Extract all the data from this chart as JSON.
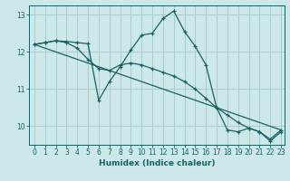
{
  "xlabel": "Humidex (Indice chaleur)",
  "bg_color": "#cce8e8",
  "grid_color": "#aacccc",
  "line_color": "#1a6060",
  "xlim": [
    -0.5,
    23.3
  ],
  "ylim": [
    9.5,
    13.25
  ],
  "yticks": [
    10,
    11,
    12,
    13
  ],
  "xticks": [
    0,
    1,
    2,
    3,
    4,
    5,
    6,
    7,
    8,
    9,
    10,
    11,
    12,
    13,
    14,
    15,
    16,
    17,
    18,
    19,
    20,
    21,
    22,
    23
  ],
  "line1_x": [
    0,
    1,
    2,
    3,
    4,
    5,
    6,
    7,
    8,
    9,
    10,
    11,
    12,
    13,
    14,
    15,
    16,
    17,
    18,
    19,
    20,
    21,
    22,
    23
  ],
  "line1_y": [
    12.2,
    12.25,
    12.3,
    12.28,
    12.25,
    12.22,
    10.7,
    11.2,
    11.6,
    12.05,
    12.45,
    12.5,
    12.9,
    13.1,
    12.55,
    12.15,
    11.65,
    10.5,
    9.9,
    9.85,
    9.95,
    9.85,
    9.6,
    9.85
  ],
  "line2_x": [
    0,
    1,
    2,
    3,
    4,
    5,
    6,
    7,
    8,
    9,
    10,
    11,
    12,
    13,
    14,
    15,
    16,
    17,
    18,
    19,
    20,
    21,
    22,
    23
  ],
  "line2_y": [
    12.2,
    12.25,
    12.3,
    12.25,
    12.1,
    11.8,
    11.55,
    11.5,
    11.65,
    11.7,
    11.65,
    11.55,
    11.45,
    11.35,
    11.2,
    11.0,
    10.75,
    10.5,
    10.3,
    10.1,
    9.95,
    9.85,
    9.65,
    9.9
  ],
  "line3_x": [
    0,
    23
  ],
  "line3_y": [
    12.2,
    9.9
  ]
}
